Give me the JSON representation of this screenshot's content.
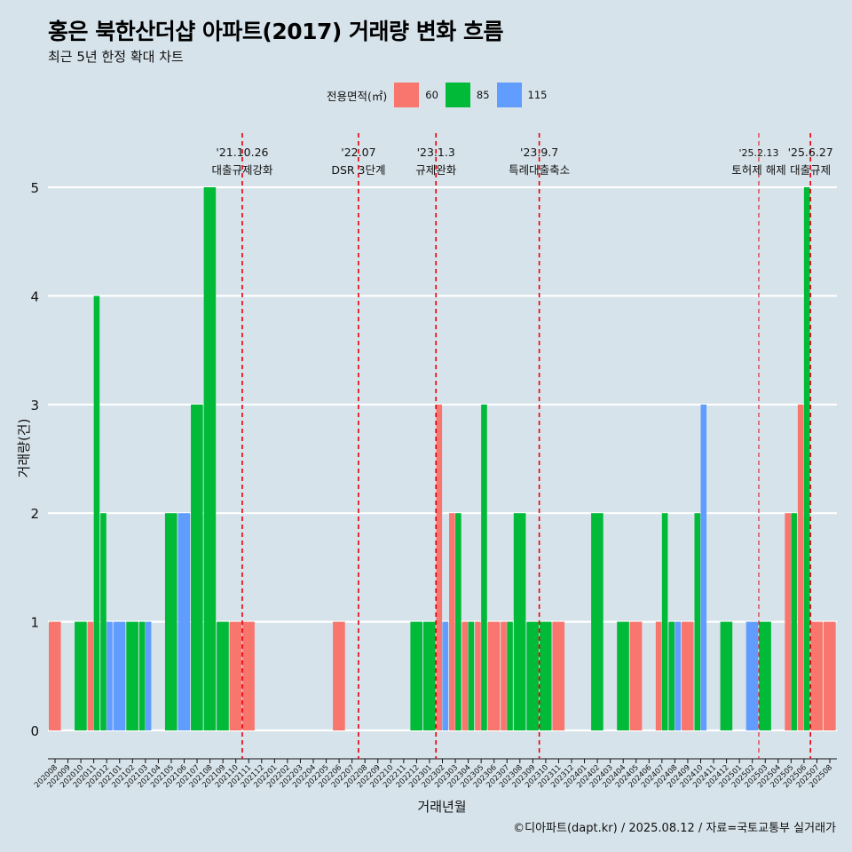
{
  "title": "홍은 북한산더샵 아파트(2017) 거래량 변화 흐름",
  "subtitle": "최근 5년 한정 확대 차트",
  "legend": {
    "title": "전용면적(㎡)",
    "items": [
      {
        "label": "60",
        "color": "#f8766d"
      },
      {
        "label": "85",
        "color": "#00ba38"
      },
      {
        "label": "115",
        "color": "#619cff"
      }
    ]
  },
  "caption": "©디아파트(dapt.kr) / 2025.08.12 / 자료=국토교통부 실거래가",
  "colors": {
    "background": "#d6e3ea",
    "grid": "#ffffff",
    "event_line": "#e8000b"
  },
  "chart_data": {
    "type": "bar",
    "xlabel": "거래년월",
    "ylabel": "거래량(건)",
    "ylim": [
      0,
      5
    ],
    "yticks": [
      0,
      1,
      2,
      3,
      4,
      5
    ],
    "grid": "horizontal",
    "legend_position": "top",
    "categories": [
      "202008",
      "202009",
      "202010",
      "202011",
      "202012",
      "202101",
      "202102",
      "202103",
      "202104",
      "202105",
      "202106",
      "202107",
      "202108",
      "202109",
      "202110",
      "202111",
      "202112",
      "202201",
      "202202",
      "202203",
      "202204",
      "202205",
      "202206",
      "202207",
      "202208",
      "202209",
      "202210",
      "202211",
      "202212",
      "202301",
      "202302",
      "202303",
      "202304",
      "202305",
      "202306",
      "202307",
      "202308",
      "202309",
      "202310",
      "202311",
      "202312",
      "202401",
      "202402",
      "202403",
      "202404",
      "202405",
      "202406",
      "202407",
      "202408",
      "202409",
      "202410",
      "202411",
      "202412",
      "202501",
      "202502",
      "202503",
      "202504",
      "202505",
      "202506",
      "202507",
      "202508"
    ],
    "series": [
      {
        "name": "60",
        "color": "#f8766d",
        "values": [
          1,
          0,
          0,
          1,
          0,
          0,
          0,
          0,
          0,
          0,
          0,
          0,
          0,
          0,
          1,
          1,
          0,
          0,
          0,
          0,
          0,
          0,
          1,
          0,
          0,
          0,
          0,
          0,
          0,
          0,
          3,
          2,
          1,
          1,
          1,
          1,
          0,
          0,
          0,
          1,
          0,
          0,
          0,
          0,
          0,
          1,
          0,
          1,
          0,
          1,
          0,
          0,
          0,
          0,
          0,
          0,
          0,
          2,
          3,
          1,
          1
        ]
      },
      {
        "name": "85",
        "color": "#00ba38",
        "values": [
          0,
          0,
          1,
          4,
          2,
          0,
          1,
          1,
          0,
          2,
          0,
          3,
          5,
          1,
          0,
          0,
          0,
          0,
          0,
          0,
          0,
          0,
          0,
          0,
          0,
          0,
          0,
          0,
          1,
          1,
          0,
          2,
          1,
          3,
          0,
          1,
          2,
          1,
          1,
          0,
          0,
          0,
          2,
          0,
          1,
          0,
          0,
          2,
          1,
          0,
          2,
          0,
          1,
          0,
          0,
          1,
          0,
          2,
          5,
          0,
          0
        ]
      },
      {
        "name": "115",
        "color": "#619cff",
        "values": [
          0,
          0,
          0,
          0,
          1,
          1,
          0,
          1,
          0,
          0,
          2,
          0,
          0,
          0,
          0,
          0,
          0,
          0,
          0,
          0,
          0,
          0,
          0,
          0,
          0,
          0,
          0,
          0,
          0,
          0,
          1,
          0,
          0,
          0,
          0,
          0,
          0,
          0,
          0,
          0,
          0,
          0,
          0,
          0,
          0,
          0,
          0,
          0,
          1,
          0,
          3,
          0,
          0,
          0,
          1,
          0,
          0,
          0,
          0,
          0,
          0
        ]
      }
    ],
    "events": [
      {
        "date": "'21.10.26",
        "label": "대출규제강화",
        "month_position": 14.5
      },
      {
        "date": "'22.07",
        "label": "DSR 3단계",
        "month_position": 23.5
      },
      {
        "date": "'23.1.3",
        "label": "규제완화",
        "month_position": 29.5
      },
      {
        "date": "'23.9.7",
        "label": "특례대출축소",
        "month_position": 37.5
      },
      {
        "date": "'25.2.13",
        "label": "토허제 해제",
        "month_position": 54.5
      },
      {
        "date": "'25.6.27",
        "label": "대출규제",
        "month_position": 58.5
      }
    ]
  }
}
